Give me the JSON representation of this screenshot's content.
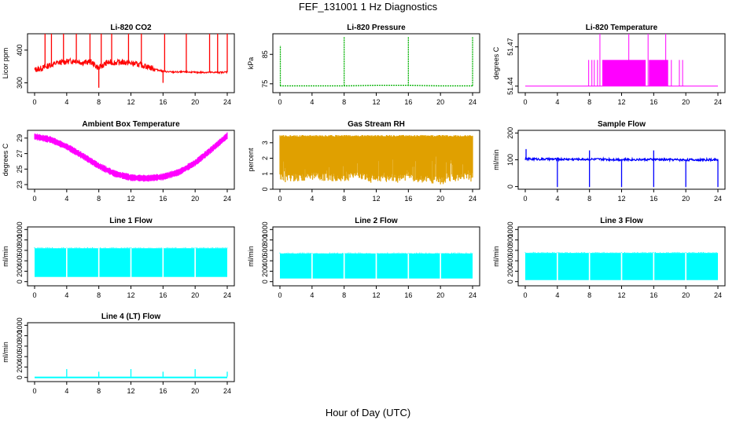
{
  "figure": {
    "title": "FEF_131001  1 Hz Diagnostics",
    "xlabel": "Hour of Day (UTC)"
  },
  "chart_data": [
    {
      "type": "line",
      "title": "Li-820 CO2",
      "ylabel": "Licor ppm",
      "color": "#ff0000",
      "xlim": [
        0,
        24
      ],
      "xticks": [
        0,
        4,
        8,
        12,
        16,
        20,
        24
      ],
      "ylim": [
        270,
        450
      ],
      "yticks": [
        300,
        400
      ],
      "ytick_labels": [
        "300",
        "400"
      ],
      "series": [
        {
          "x": [
            0,
            1,
            2,
            3,
            4,
            5,
            6,
            7,
            8,
            9,
            10,
            11,
            12,
            13,
            14,
            15,
            16,
            17,
            18,
            19,
            20,
            21,
            22,
            23,
            24
          ],
          "values": [
            340,
            345,
            355,
            362,
            365,
            368,
            362,
            364,
            345,
            362,
            362,
            363,
            360,
            356,
            350,
            342,
            335,
            333,
            333,
            333,
            332,
            332,
            332,
            332,
            333
          ]
        }
      ],
      "spikes": [
        {
          "x": 1.3,
          "values": 450
        },
        {
          "x": 2.1,
          "values": 450
        },
        {
          "x": 3.6,
          "values": 450
        },
        {
          "x": 5.2,
          "values": 450
        },
        {
          "x": 6.9,
          "values": 450
        },
        {
          "x": 8.0,
          "values": 285
        },
        {
          "x": 8.3,
          "values": 450
        },
        {
          "x": 9.6,
          "values": 450
        },
        {
          "x": 11.7,
          "values": 450
        },
        {
          "x": 13.3,
          "values": 450
        },
        {
          "x": 16.2,
          "values": 450
        },
        {
          "x": 16.0,
          "values": 300
        },
        {
          "x": 18.9,
          "values": 450
        },
        {
          "x": 21.8,
          "values": 450
        },
        {
          "x": 22.8,
          "values": 450
        },
        {
          "x": 24.0,
          "values": 450
        }
      ]
    },
    {
      "type": "line",
      "title": "Li-820 Pressure",
      "ylabel": "kPa",
      "color": "#00b000",
      "xlim": [
        0,
        24
      ],
      "xticks": [
        0,
        4,
        8,
        12,
        16,
        20,
        24
      ],
      "ylim": [
        72,
        92
      ],
      "yticks": [
        75,
        85
      ],
      "ytick_labels": [
        "75",
        "85"
      ],
      "series": [
        {
          "x": [
            0,
            4,
            8,
            12,
            16,
            20,
            24
          ],
          "values": [
            74.3,
            74.3,
            74.3,
            74.5,
            74.5,
            74.3,
            74.3
          ]
        }
      ],
      "spikes": [
        {
          "x": 0.05,
          "values": 88
        },
        {
          "x": 8.0,
          "values": 91
        },
        {
          "x": 16.0,
          "values": 91
        },
        {
          "x": 24.0,
          "values": 91
        }
      ]
    },
    {
      "type": "bar",
      "title": "Li-820 Temperature",
      "ylabel": "degrees C",
      "color": "#ff00ff",
      "xlim": [
        0,
        24
      ],
      "xticks": [
        0,
        4,
        8,
        12,
        16,
        20,
        24
      ],
      "ylim": [
        51.435,
        51.48
      ],
      "yticks": [
        51.44,
        51.47
      ],
      "ytick_labels": [
        "51.44",
        "51.47"
      ],
      "baseline": 51.44,
      "level": 51.46,
      "dense_blocks": [
        [
          9.6,
          15.0
        ],
        [
          15.4,
          17.8
        ]
      ],
      "spikes": [
        {
          "x": 7.9,
          "values": 51.46
        },
        {
          "x": 8.3,
          "values": 51.46
        },
        {
          "x": 8.6,
          "values": 51.46
        },
        {
          "x": 9.0,
          "values": 51.46
        },
        {
          "x": 9.3,
          "values": 51.48
        },
        {
          "x": 12.9,
          "values": 51.48
        },
        {
          "x": 15.3,
          "values": 51.48
        },
        {
          "x": 17.5,
          "values": 51.48
        },
        {
          "x": 18.2,
          "values": 51.46
        },
        {
          "x": 19.2,
          "values": 51.46
        },
        {
          "x": 19.6,
          "values": 51.46
        }
      ]
    },
    {
      "type": "area",
      "title": "Ambient Box Temperature",
      "ylabel": "degrees C",
      "color": "#ff00ff",
      "xlim": [
        0,
        24
      ],
      "xticks": [
        0,
        4,
        8,
        12,
        16,
        20,
        24
      ],
      "ylim": [
        22.4,
        30
      ],
      "yticks": [
        23,
        25,
        27,
        29
      ],
      "ytick_labels": [
        "23",
        "25",
        "27",
        "29"
      ],
      "band_halfwidth": 0.35,
      "series": [
        {
          "x": [
            0,
            2,
            4,
            6,
            8,
            10,
            12,
            14,
            16,
            18,
            20,
            22,
            24
          ],
          "values": [
            29.2,
            28.8,
            27.9,
            26.7,
            25.4,
            24.4,
            23.9,
            23.8,
            24.0,
            24.6,
            25.8,
            27.5,
            29.3
          ]
        }
      ]
    },
    {
      "type": "area",
      "title": "Gas Stream RH",
      "ylabel": "percent",
      "color": "#e0a000",
      "xlim": [
        0,
        24
      ],
      "xticks": [
        0,
        4,
        8,
        12,
        16,
        20,
        24
      ],
      "ylim": [
        0,
        3.8
      ],
      "yticks": [
        0,
        1,
        2,
        3
      ],
      "ytick_labels": [
        "0",
        "1",
        "2",
        "3"
      ],
      "series": [
        {
          "name": "max",
          "x": [
            0,
            24
          ],
          "values": [
            3.5,
            3.5
          ]
        },
        {
          "name": "min",
          "x": [
            0,
            2,
            4,
            6,
            8,
            10,
            12,
            14,
            16,
            18,
            20,
            22,
            24
          ],
          "values": [
            0.5,
            0.5,
            0.6,
            0.5,
            0.5,
            0.6,
            0.4,
            0.5,
            0.5,
            0.4,
            0.3,
            0.5,
            0.6
          ]
        }
      ]
    },
    {
      "type": "line",
      "title": "Sample Flow",
      "ylabel": "ml/min",
      "color": "#0000ff",
      "xlim": [
        0,
        24
      ],
      "xticks": [
        0,
        4,
        8,
        12,
        16,
        20,
        24
      ],
      "ylim": [
        -10,
        210
      ],
      "yticks": [
        0,
        100,
        200
      ],
      "ytick_labels": [
        "0",
        "100",
        "200"
      ],
      "series": [
        {
          "x": [
            0,
            4,
            8,
            12,
            16,
            20,
            24
          ],
          "values": [
            103,
            102,
            102,
            101,
            101,
            100,
            100
          ]
        }
      ],
      "spikes": [
        {
          "x": 0.1,
          "values": 140
        },
        {
          "x": 4.0,
          "values": -2
        },
        {
          "x": 8.0,
          "values": 135
        },
        {
          "x": 8.0,
          "values": -2
        },
        {
          "x": 12.0,
          "values": -2
        },
        {
          "x": 16.0,
          "values": 135
        },
        {
          "x": 16.0,
          "values": -2
        },
        {
          "x": 20.0,
          "values": -2
        },
        {
          "x": 24.0,
          "values": -2
        }
      ]
    },
    {
      "type": "area",
      "title": "Line 1 Flow",
      "ylabel": "ml/min",
      "color": "#00ffff",
      "xlim": [
        0,
        24
      ],
      "xticks": [
        0,
        4,
        8,
        12,
        16,
        20,
        24
      ],
      "ylim": [
        -80,
        1050
      ],
      "yticks": [
        0,
        200,
        400,
        600,
        800,
        1000
      ],
      "ytick_labels": [
        "0",
        "200",
        "400",
        "600",
        "800",
        "1000"
      ],
      "series": [
        {
          "name": "max",
          "x": [
            0,
            24
          ],
          "values": [
            640,
            640
          ]
        },
        {
          "name": "min",
          "x": [
            0,
            24
          ],
          "values": [
            90,
            90
          ]
        }
      ],
      "gaps": [
        4,
        8,
        12,
        16,
        20
      ]
    },
    {
      "type": "area",
      "title": "Line 2 Flow",
      "ylabel": "ml/min",
      "color": "#00ffff",
      "xlim": [
        0,
        24
      ],
      "xticks": [
        0,
        4,
        8,
        12,
        16,
        20,
        24
      ],
      "ylim": [
        -80,
        1050
      ],
      "yticks": [
        0,
        200,
        400,
        600,
        800,
        1000
      ],
      "ytick_labels": [
        "0",
        "200",
        "400",
        "600",
        "800",
        "1000"
      ],
      "series": [
        {
          "name": "max",
          "x": [
            0,
            24
          ],
          "values": [
            540,
            540
          ]
        },
        {
          "name": "min",
          "x": [
            0,
            24
          ],
          "values": [
            60,
            60
          ]
        }
      ],
      "gaps": [
        4,
        8,
        12,
        16,
        20
      ]
    },
    {
      "type": "area",
      "title": "Line 3 Flow",
      "ylabel": "ml/min",
      "color": "#00ffff",
      "xlim": [
        0,
        24
      ],
      "xticks": [
        0,
        4,
        8,
        12,
        16,
        20,
        24
      ],
      "ylim": [
        -80,
        1050
      ],
      "yticks": [
        0,
        200,
        400,
        600,
        800,
        1000
      ],
      "ytick_labels": [
        "0",
        "200",
        "400",
        "600",
        "800",
        "1000"
      ],
      "series": [
        {
          "name": "max",
          "x": [
            0,
            24
          ],
          "values": [
            550,
            550
          ]
        },
        {
          "name": "min",
          "x": [
            0,
            24
          ],
          "values": [
            30,
            30
          ]
        }
      ],
      "gaps": [
        4,
        8,
        12,
        16,
        20
      ]
    },
    {
      "type": "line",
      "title": "Line 4 (LT) Flow",
      "ylabel": "ml/min",
      "color": "#00ffff",
      "xlim": [
        0,
        24
      ],
      "xticks": [
        0,
        4,
        8,
        12,
        16,
        20,
        24
      ],
      "ylim": [
        -80,
        1050
      ],
      "yticks": [
        0,
        200,
        400,
        600,
        800,
        1000
      ],
      "ytick_labels": [
        "0",
        "200",
        "400",
        "600",
        "800",
        "1000"
      ],
      "series": [
        {
          "x": [
            0,
            24
          ],
          "values": [
            15,
            15
          ]
        }
      ],
      "spikes": [
        {
          "x": 4.0,
          "values": 160
        },
        {
          "x": 8.0,
          "values": 110
        },
        {
          "x": 12.0,
          "values": 160
        },
        {
          "x": 16.0,
          "values": 110
        },
        {
          "x": 20.0,
          "values": 160
        },
        {
          "x": 24.0,
          "values": 110
        }
      ]
    }
  ]
}
